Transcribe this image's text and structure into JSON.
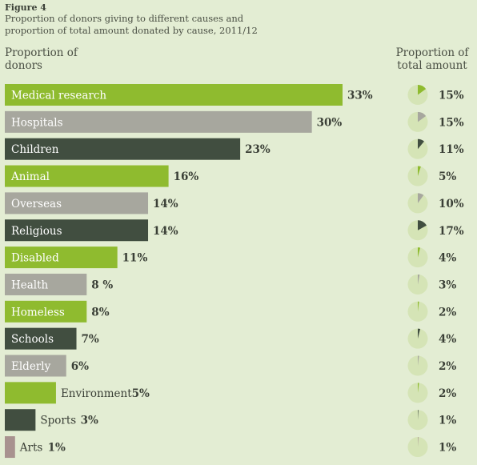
{
  "figure_label": "Figure 4",
  "figure_title": "Proportion of donors giving to different causes and proportion of total amount donated by cause, 2011/12",
  "left_header": "Proportion of donors",
  "right_header": "Proportion of total amount",
  "colors": {
    "background": "#e3edd3",
    "green": "#8fbb2f",
    "grey": "#a7a79e",
    "dark": "#414e40",
    "arts": "#a8928f",
    "pie_base": "#d5e4b6"
  },
  "chart_data": {
    "type": "bar",
    "orientation": "horizontal",
    "title": "Proportion of donors giving to different causes and proportion of total amount donated by cause, 2011/12",
    "xlabel": "Proportion of donors",
    "categories": [
      "Medical research",
      "Hospitals",
      "Children",
      "Animal",
      "Overseas",
      "Religious",
      "Disabled",
      "Health",
      "Homeless",
      "Schools",
      "Elderly",
      "Environment",
      "Sports",
      "Arts"
    ],
    "series": [
      {
        "name": "Proportion of donors",
        "values": [
          33,
          30,
          23,
          16,
          14,
          14,
          11,
          8,
          8,
          7,
          6,
          5,
          3,
          1
        ],
        "labels": [
          "33%",
          "30%",
          "23%",
          "16%",
          "14%",
          "14%",
          "11%",
          "8 %",
          "8%",
          "7%",
          "6%",
          "5%",
          "3%",
          "1%"
        ]
      },
      {
        "name": "Proportion of total amount",
        "values": [
          15,
          15,
          11,
          5,
          10,
          17,
          4,
          3,
          2,
          4,
          2,
          2,
          1,
          1
        ],
        "labels": [
          "15%",
          "15%",
          "11%",
          "5%",
          "10%",
          "17%",
          "4%",
          "3%",
          "2%",
          "4%",
          "2%",
          "2%",
          "1%",
          "1%"
        ]
      }
    ],
    "bar_colors": [
      "green",
      "grey",
      "dark",
      "green",
      "grey",
      "dark",
      "green",
      "grey",
      "green",
      "dark",
      "grey",
      "green",
      "dark",
      "arts"
    ],
    "xlim": [
      0,
      33
    ]
  }
}
